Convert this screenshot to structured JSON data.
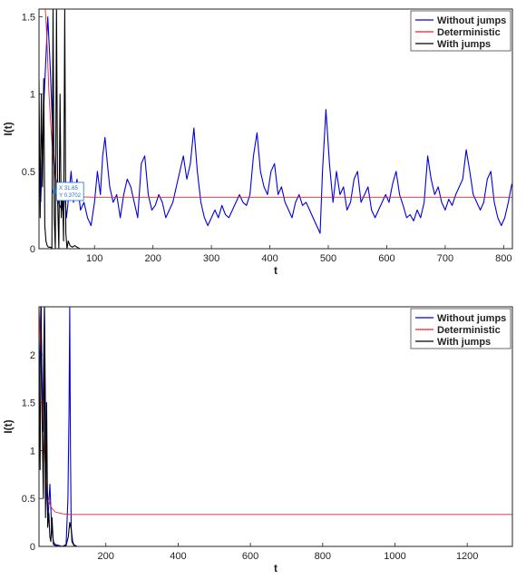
{
  "chart_data": [
    {
      "type": "line",
      "ylabel": "I(t)",
      "xlabel": "t",
      "xlim": [
        5,
        815
      ],
      "ylim": [
        0,
        1.55
      ],
      "xticks": [
        100,
        200,
        300,
        400,
        500,
        600,
        700,
        800
      ],
      "yticks": [
        0,
        0.5,
        1,
        1.5
      ],
      "ytick_labels": [
        "0",
        "0.5",
        "1",
        "1.5"
      ],
      "legend_position": "top-right",
      "grid": false,
      "series": [
        {
          "name": "Without jumps",
          "color": "#0000dd",
          "x": [
            8,
            14,
            20,
            24,
            28,
            32,
            38,
            44,
            48,
            52,
            56,
            60,
            64,
            70,
            76,
            82,
            88,
            94,
            100,
            105,
            110,
            114,
            118,
            122,
            126,
            132,
            138,
            144,
            150,
            156,
            162,
            168,
            174,
            180,
            186,
            192,
            198,
            204,
            210,
            216,
            222,
            228,
            234,
            240,
            246,
            252,
            258,
            264,
            270,
            276,
            282,
            288,
            294,
            300,
            306,
            312,
            318,
            324,
            330,
            336,
            342,
            348,
            354,
            360,
            366,
            372,
            378,
            384,
            390,
            396,
            402,
            408,
            414,
            420,
            426,
            432,
            438,
            444,
            450,
            456,
            462,
            468,
            474,
            480,
            486,
            490,
            496,
            502,
            508,
            514,
            520,
            526,
            532,
            538,
            544,
            550,
            556,
            562,
            568,
            574,
            580,
            586,
            592,
            598,
            604,
            610,
            616,
            622,
            628,
            634,
            640,
            646,
            652,
            658,
            664,
            670,
            676,
            682,
            688,
            694,
            700,
            706,
            712,
            718,
            724,
            730,
            736,
            742,
            748,
            754,
            760,
            766,
            772,
            778,
            784,
            790,
            796,
            802,
            808,
            814
          ],
          "y": [
            0.3,
            1.0,
            1.5,
            1.2,
            0.8,
            0.5,
            0.3,
            0.25,
            0.4,
            0.2,
            0.35,
            0.5,
            0.3,
            0.45,
            0.25,
            0.3,
            0.2,
            0.15,
            0.3,
            0.5,
            0.35,
            0.6,
            0.72,
            0.55,
            0.4,
            0.3,
            0.35,
            0.2,
            0.35,
            0.45,
            0.4,
            0.3,
            0.2,
            0.55,
            0.6,
            0.35,
            0.25,
            0.28,
            0.35,
            0.3,
            0.2,
            0.25,
            0.3,
            0.4,
            0.5,
            0.6,
            0.45,
            0.55,
            0.78,
            0.5,
            0.3,
            0.2,
            0.15,
            0.2,
            0.25,
            0.2,
            0.28,
            0.22,
            0.2,
            0.25,
            0.3,
            0.35,
            0.3,
            0.28,
            0.35,
            0.6,
            0.75,
            0.5,
            0.4,
            0.35,
            0.5,
            0.55,
            0.35,
            0.4,
            0.3,
            0.25,
            0.2,
            0.3,
            0.35,
            0.28,
            0.3,
            0.25,
            0.2,
            0.15,
            0.1,
            0.5,
            0.9,
            0.55,
            0.3,
            0.5,
            0.35,
            0.4,
            0.25,
            0.3,
            0.45,
            0.5,
            0.3,
            0.35,
            0.4,
            0.25,
            0.2,
            0.25,
            0.3,
            0.35,
            0.3,
            0.42,
            0.5,
            0.35,
            0.28,
            0.2,
            0.22,
            0.18,
            0.25,
            0.2,
            0.3,
            0.6,
            0.45,
            0.35,
            0.4,
            0.3,
            0.25,
            0.32,
            0.28,
            0.35,
            0.4,
            0.45,
            0.64,
            0.5,
            0.35,
            0.3,
            0.25,
            0.3,
            0.45,
            0.5,
            0.3,
            0.2,
            0.15,
            0.2,
            0.3,
            0.42
          ]
        },
        {
          "name": "Deterministic",
          "color": "#e8222a",
          "x": [
            5,
            12,
            18,
            22,
            26,
            30,
            34,
            40,
            50,
            60,
            80,
            100,
            200,
            400,
            600,
            815
          ],
          "y": [
            2.2,
            1.8,
            1.4,
            1.0,
            0.75,
            0.55,
            0.45,
            0.38,
            0.35,
            0.34,
            0.335,
            0.333,
            0.333,
            0.333,
            0.333,
            0.333
          ]
        },
        {
          "name": "With jumps",
          "color": "#000000",
          "x": [
            5,
            7,
            9,
            11,
            13,
            15,
            17,
            19,
            21,
            23,
            25,
            27,
            29,
            31,
            33,
            35,
            37,
            39,
            41,
            43,
            45,
            47,
            49,
            51,
            53,
            55,
            58,
            62,
            66,
            70,
            75
          ],
          "y": [
            1.1,
            0.2,
            1.0,
            0.4,
            1.1,
            0.15,
            0.05,
            0.02,
            0.01,
            0.01,
            0.01,
            0.0,
            1.55,
            0.2,
            0.0,
            1.55,
            0.3,
            0.0,
            1.0,
            0.2,
            0.4,
            0.05,
            1.55,
            0.1,
            0.0,
            0.05,
            0.02,
            0.01,
            0.02,
            0.01,
            0.0
          ]
        }
      ],
      "annotation": {
        "x_label": "X 31.65",
        "y_label": "Y 0.3702",
        "x": 31.65,
        "y": 0.3702
      }
    },
    {
      "type": "line",
      "ylabel": "I(t)",
      "xlabel": "t",
      "xlim": [
        15,
        1325
      ],
      "ylim": [
        0,
        2.5
      ],
      "xticks": [
        200,
        400,
        600,
        800,
        1000,
        1200
      ],
      "yticks": [
        0,
        0.5,
        1,
        1.5,
        2
      ],
      "ytick_labels": [
        "0",
        "0.5",
        "1",
        "1.5",
        "2"
      ],
      "legend_position": "top-right",
      "grid": false,
      "series": [
        {
          "name": "Without jumps",
          "color": "#0000dd",
          "x": [
            15,
            20,
            25,
            30,
            35,
            40,
            45,
            50,
            55,
            60,
            70,
            80,
            90,
            95,
            98,
            100,
            102,
            104,
            106,
            110,
            120,
            150,
            200,
            400,
            800,
            1325
          ],
          "y": [
            1.5,
            2.5,
            1.2,
            2.5,
            0.6,
            0.3,
            0.65,
            0.2,
            0.05,
            0.02,
            0.01,
            0.0,
            0.02,
            0.5,
            1.4,
            2.5,
            1.0,
            0.2,
            0.05,
            0.02,
            0.0,
            0.0,
            0.0,
            0.0,
            0.0,
            0.0
          ]
        },
        {
          "name": "Deterministic",
          "color": "#e8222a",
          "x": [
            15,
            20,
            25,
            30,
            35,
            40,
            50,
            60,
            80,
            100,
            200,
            600,
            1000,
            1325
          ],
          "y": [
            2.5,
            2.0,
            1.5,
            1.0,
            0.7,
            0.5,
            0.4,
            0.36,
            0.34,
            0.333,
            0.333,
            0.333,
            0.333,
            0.333
          ]
        },
        {
          "name": "With jumps",
          "color": "#000000",
          "x": [
            15,
            18,
            21,
            24,
            27,
            30,
            33,
            36,
            39,
            42,
            45,
            48,
            51,
            55,
            60,
            70,
            80,
            90,
            96,
            100,
            104,
            108,
            112,
            120,
            150,
            300,
            1325
          ],
          "y": [
            2.0,
            0.8,
            2.5,
            1.2,
            0.5,
            2.5,
            0.3,
            1.5,
            0.2,
            0.35,
            0.1,
            0.05,
            0.3,
            0.02,
            0.01,
            0.0,
            0.0,
            0.01,
            0.1,
            0.25,
            0.18,
            0.05,
            0.01,
            0.0,
            0.0,
            0.0,
            0.0
          ]
        }
      ]
    }
  ]
}
